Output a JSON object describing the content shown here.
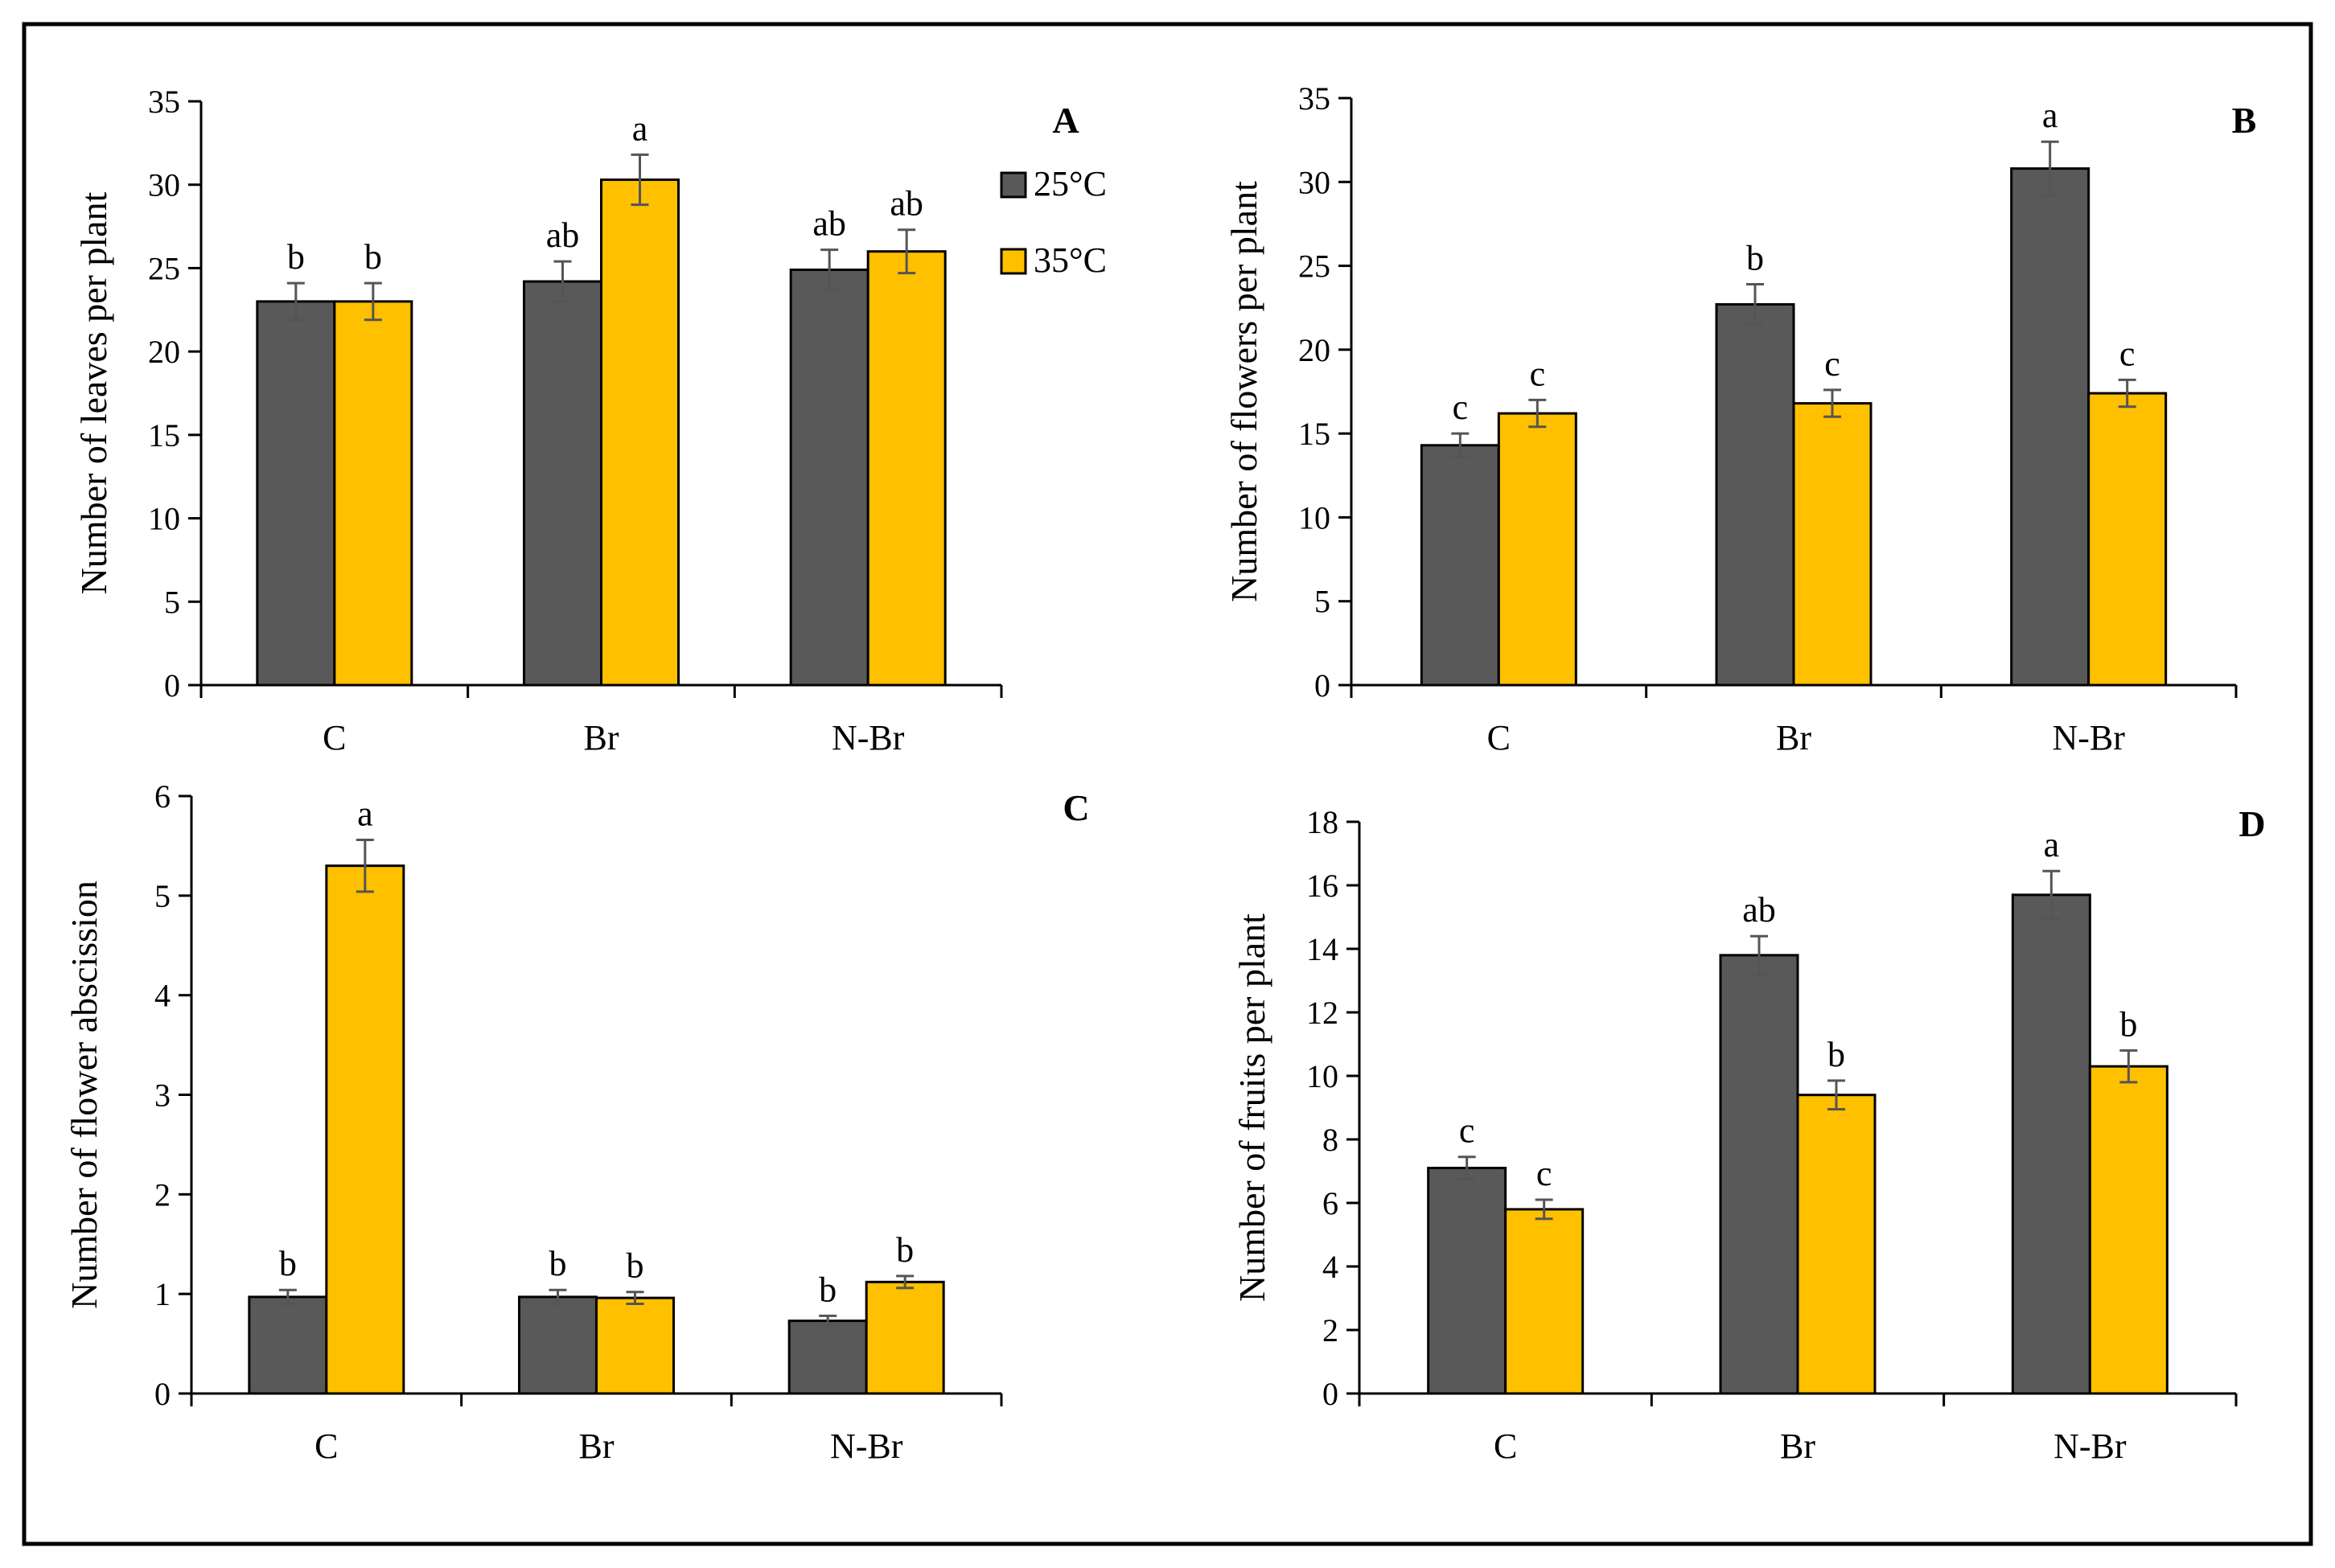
{
  "chart_data": [
    {
      "panel": "A",
      "type": "bar",
      "categories": [
        "C",
        "Br",
        "N-Br"
      ],
      "series": [
        {
          "name": "25°C",
          "color": "#595959",
          "values": [
            23.0,
            24.2,
            24.9
          ],
          "errors": [
            1.1,
            1.2,
            1.2
          ],
          "labels": [
            "b",
            "ab",
            "ab"
          ]
        },
        {
          "name": "35°C",
          "color": "#ffc000",
          "values": [
            23.0,
            30.3,
            26.0
          ],
          "errors": [
            1.1,
            1.5,
            1.3
          ],
          "labels": [
            "b",
            "a",
            "ab"
          ]
        }
      ],
      "ylabel": "Number of leaves per plant",
      "ylim": [
        0,
        35
      ],
      "yticks": [
        "0",
        "5",
        "10",
        "15",
        "20",
        "25",
        "30",
        "35"
      ],
      "legend": true
    },
    {
      "panel": "B",
      "type": "bar",
      "categories": [
        "C",
        "Br",
        "N-Br"
      ],
      "series": [
        {
          "name": "25°C",
          "color": "#595959",
          "values": [
            14.3,
            22.7,
            30.8
          ],
          "errors": [
            0.7,
            1.2,
            1.6
          ],
          "labels": [
            "c",
            "b",
            "a"
          ]
        },
        {
          "name": "35°C",
          "color": "#ffc000",
          "values": [
            16.2,
            16.8,
            17.4
          ],
          "errors": [
            0.8,
            0.8,
            0.8
          ],
          "labels": [
            "c",
            "c",
            "c"
          ]
        }
      ],
      "ylabel": "Number of flowers per plant",
      "ylim": [
        0,
        35
      ],
      "yticks": [
        "0",
        "5",
        "10",
        "15",
        "20",
        "25",
        "30",
        "35"
      ],
      "legend": false
    },
    {
      "panel": "C",
      "type": "bar",
      "categories": [
        "C",
        "Br",
        "N-Br"
      ],
      "series": [
        {
          "name": "25°C",
          "color": "#595959",
          "values": [
            0.97,
            0.97,
            0.73
          ],
          "errors": [
            0.07,
            0.07,
            0.05
          ],
          "labels": [
            "b",
            "b",
            "b"
          ]
        },
        {
          "name": "35°C",
          "color": "#ffc000",
          "values": [
            5.3,
            0.96,
            1.12
          ],
          "errors": [
            0.26,
            0.06,
            0.06
          ],
          "labels": [
            "a",
            "b",
            "b"
          ]
        }
      ],
      "ylabel": "Number of flower abscission",
      "ylim": [
        0,
        6
      ],
      "yticks": [
        "0",
        "1",
        "2",
        "3",
        "4",
        "5",
        "6"
      ],
      "legend": false
    },
    {
      "panel": "D",
      "type": "bar",
      "categories": [
        "C",
        "Br",
        "N-Br"
      ],
      "series": [
        {
          "name": "25°C",
          "color": "#595959",
          "values": [
            7.1,
            13.8,
            15.7
          ],
          "errors": [
            0.35,
            0.6,
            0.75
          ],
          "labels": [
            "c",
            "ab",
            "a"
          ]
        },
        {
          "name": "35°C",
          "color": "#ffc000",
          "values": [
            5.8,
            9.4,
            10.3
          ],
          "errors": [
            0.3,
            0.45,
            0.5
          ],
          "labels": [
            "c",
            "b",
            "b"
          ]
        }
      ],
      "ylabel": "Number of fruits per plant",
      "ylim": [
        0,
        18
      ],
      "yticks": [
        "0",
        "2",
        "4",
        "6",
        "8",
        "10",
        "12",
        "14",
        "16",
        "18"
      ],
      "legend": false
    }
  ]
}
